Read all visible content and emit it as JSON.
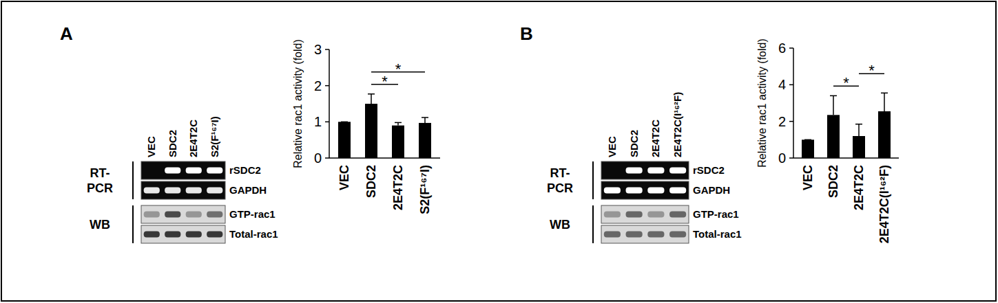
{
  "chart_data": [
    {
      "type": "bar",
      "ylabel": "Relative rac1 activity (fold)",
      "categories": [
        "VEC",
        "SDC2",
        "2E4T2C",
        "S2(F¹⁶⁷I)"
      ],
      "values": [
        1.0,
        1.5,
        0.9,
        0.97
      ],
      "errors": [
        0,
        0.27,
        0.08,
        0.15
      ],
      "color": "#000000",
      "ylim": [
        0,
        3
      ],
      "yticks": [
        0,
        1,
        2,
        3
      ],
      "significance": [
        {
          "from": 1,
          "to": 2,
          "label": "*"
        },
        {
          "from": 1,
          "to": 3,
          "label": "*"
        }
      ]
    },
    {
      "type": "bar",
      "ylabel": "Relative rac1 activity (fold)",
      "categories": [
        "VEC",
        "SDC2",
        "2E4T2C",
        "2E4T2C(I¹⁶²F)"
      ],
      "values": [
        1.0,
        2.35,
        1.2,
        2.55
      ],
      "errors": [
        0,
        1.05,
        0.65,
        1.0
      ],
      "color": "#000000",
      "ylim": [
        0,
        6
      ],
      "yticks": [
        0,
        2,
        4,
        6
      ],
      "significance": [
        {
          "from": 1,
          "to": 2,
          "label": "*"
        },
        {
          "from": 2,
          "to": 3,
          "label": "*"
        }
      ]
    }
  ],
  "blots": [
    {
      "panel": "A",
      "lanes": [
        "VEC",
        "SDC2",
        "2E4T2C",
        "S2(F¹⁶⁷I)"
      ],
      "groups": [
        {
          "label_lines": [
            "RT-",
            "PCR"
          ],
          "rows": [
            {
              "name": "rSDC2",
              "intensity": [
                0,
                1,
                1,
                1
              ]
            },
            {
              "name": "GAPDH",
              "intensity": [
                0.9,
                0.9,
                0.9,
                0.9
              ]
            }
          ]
        },
        {
          "label_lines": [
            "WB"
          ],
          "rows": [
            {
              "name": "GTP-rac1",
              "intensity": [
                0.35,
                0.75,
                0.35,
                0.55
              ]
            },
            {
              "name": "Total-rac1",
              "intensity": [
                0.85,
                0.85,
                0.85,
                0.85
              ]
            }
          ]
        }
      ]
    },
    {
      "panel": "B",
      "lanes": [
        "VEC",
        "SDC2",
        "2E4T2C",
        "2E4T2C(I¹⁶²F)"
      ],
      "groups": [
        {
          "label_lines": [
            "RT-",
            "PCR"
          ],
          "rows": [
            {
              "name": "rSDC2",
              "intensity": [
                0,
                1,
                1,
                1
              ]
            },
            {
              "name": "GAPDH",
              "intensity": [
                1,
                1,
                1,
                1
              ]
            }
          ]
        },
        {
          "label_lines": [
            "WB"
          ],
          "rows": [
            {
              "name": "GTP-rac1",
              "intensity": [
                0.35,
                0.6,
                0.35,
                0.6
              ]
            },
            {
              "name": "Total-rac1",
              "intensity": [
                0.6,
                0.6,
                0.6,
                0.6
              ]
            }
          ]
        }
      ]
    }
  ]
}
